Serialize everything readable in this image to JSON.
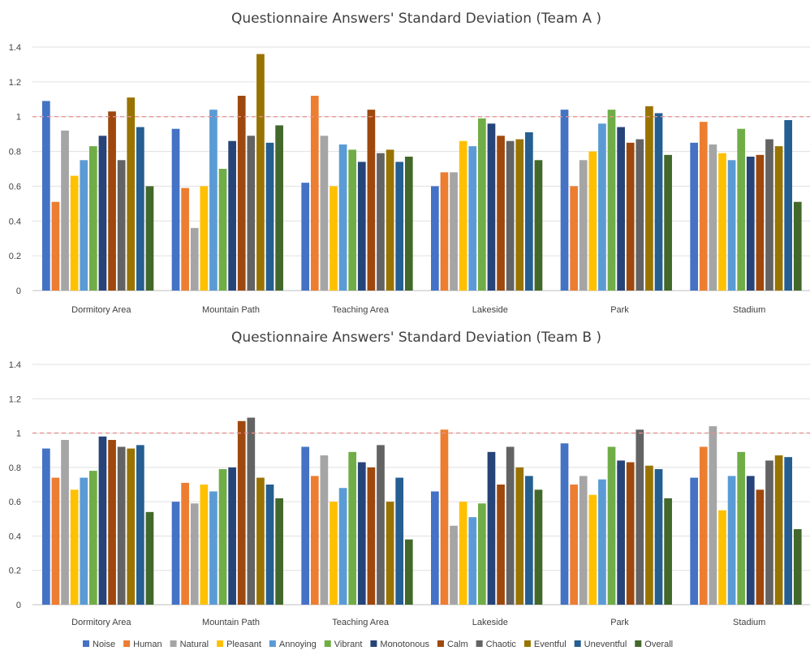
{
  "series_colors": [
    "#4472C4",
    "#ED7D31",
    "#A5A5A5",
    "#FFC000",
    "#5B9BD5",
    "#70AD47",
    "#264478",
    "#9E480E",
    "#636363",
    "#997300",
    "#255E91",
    "#43682B"
  ],
  "reference_line": {
    "value": 1,
    "color": "#E8908F"
  },
  "chart_data": [
    {
      "type": "bar",
      "title": "Questionnaire Answers' Standard Deviation (Team A )",
      "categories": [
        "Dormitory Area",
        "Mountain Path",
        "Teaching Area",
        "Lakeside",
        "Park",
        "Stadium"
      ],
      "ylim": [
        0,
        1.4
      ],
      "yticks": [
        "0",
        "0.2",
        "0.4",
        "0.6",
        "0.8",
        "1",
        "1.2",
        "1.4"
      ],
      "grid": true,
      "legend": "none",
      "series": [
        {
          "name": "Noise",
          "values": [
            1.09,
            0.93,
            0.62,
            0.6,
            1.04,
            0.85
          ]
        },
        {
          "name": "Human",
          "values": [
            0.51,
            0.59,
            1.12,
            0.68,
            0.6,
            0.97
          ]
        },
        {
          "name": "Natural",
          "values": [
            0.92,
            0.36,
            0.89,
            0.68,
            0.75,
            0.84
          ]
        },
        {
          "name": "Pleasant",
          "values": [
            0.66,
            0.6,
            0.6,
            0.86,
            0.8,
            0.79
          ]
        },
        {
          "name": "Annoying",
          "values": [
            0.75,
            1.04,
            0.84,
            0.83,
            0.96,
            0.75
          ]
        },
        {
          "name": "Vibrant",
          "values": [
            0.83,
            0.7,
            0.81,
            0.99,
            1.04,
            0.93
          ]
        },
        {
          "name": "Monotonous",
          "values": [
            0.89,
            0.86,
            0.74,
            0.96,
            0.94,
            0.77
          ]
        },
        {
          "name": "Calm",
          "values": [
            1.03,
            1.12,
            1.04,
            0.89,
            0.85,
            0.78
          ]
        },
        {
          "name": "Chaotic",
          "values": [
            0.75,
            0.89,
            0.79,
            0.86,
            0.87,
            0.87
          ]
        },
        {
          "name": "Eventful",
          "values": [
            1.11,
            1.36,
            0.81,
            0.87,
            1.06,
            0.83
          ]
        },
        {
          "name": "Uneventful",
          "values": [
            0.94,
            0.85,
            0.74,
            0.91,
            1.02,
            0.98
          ]
        },
        {
          "name": "Overall",
          "values": [
            0.6,
            0.95,
            0.77,
            0.75,
            0.78,
            0.51
          ]
        }
      ]
    },
    {
      "type": "bar",
      "title": "Questionnaire Answers' Standard Deviation (Team B )",
      "categories": [
        "Dormitory Area",
        "Mountain Path",
        "Teaching Area",
        "Lakeside",
        "Park",
        "Stadium"
      ],
      "ylim": [
        0,
        1.4
      ],
      "yticks": [
        "0",
        "0.2",
        "0.4",
        "0.6",
        "0.8",
        "1",
        "1.2",
        "1.4"
      ],
      "grid": true,
      "legend": "bottom",
      "series": [
        {
          "name": "Noise",
          "values": [
            0.91,
            0.6,
            0.92,
            0.66,
            0.94,
            0.74
          ]
        },
        {
          "name": "Human",
          "values": [
            0.74,
            0.71,
            0.75,
            1.02,
            0.7,
            0.92
          ]
        },
        {
          "name": "Natural",
          "values": [
            0.96,
            0.59,
            0.87,
            0.46,
            0.75,
            1.04
          ]
        },
        {
          "name": "Pleasant",
          "values": [
            0.67,
            0.7,
            0.6,
            0.6,
            0.64,
            0.55
          ]
        },
        {
          "name": "Annoying",
          "values": [
            0.74,
            0.66,
            0.68,
            0.51,
            0.73,
            0.75
          ]
        },
        {
          "name": "Vibrant",
          "values": [
            0.78,
            0.79,
            0.89,
            0.59,
            0.92,
            0.89
          ]
        },
        {
          "name": "Monotonous",
          "values": [
            0.98,
            0.8,
            0.83,
            0.89,
            0.84,
            0.75
          ]
        },
        {
          "name": "Calm",
          "values": [
            0.96,
            1.07,
            0.8,
            0.7,
            0.83,
            0.67
          ]
        },
        {
          "name": "Chaotic",
          "values": [
            0.92,
            1.09,
            0.93,
            0.92,
            1.02,
            0.84
          ]
        },
        {
          "name": "Eventful",
          "values": [
            0.91,
            0.74,
            0.6,
            0.8,
            0.81,
            0.87
          ]
        },
        {
          "name": "Uneventful",
          "values": [
            0.93,
            0.7,
            0.74,
            0.75,
            0.79,
            0.86
          ]
        },
        {
          "name": "Overall",
          "values": [
            0.54,
            0.62,
            0.38,
            0.67,
            0.62,
            0.44
          ]
        }
      ]
    }
  ]
}
